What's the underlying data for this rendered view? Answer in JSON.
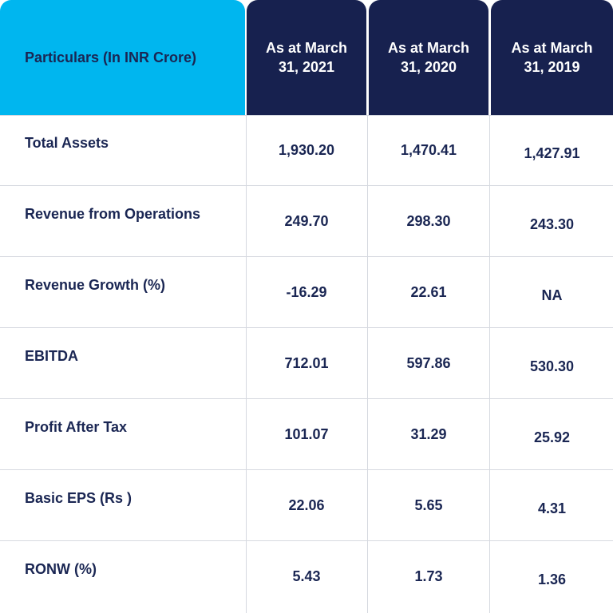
{
  "header": {
    "particulars": "Particulars (In INR Crore)",
    "col_2021": "As at March 31, 2021",
    "col_2020": "As at March 31, 2020",
    "col_2019": "As at March 31, 2019"
  },
  "rows": [
    {
      "label": "Total Assets",
      "v2021": "1,930.20",
      "v2020": "1,470.41",
      "v2019": "1,427.91"
    },
    {
      "label": "Revenue from Operations",
      "v2021": "249.70",
      "v2020": "298.30",
      "v2019": "243.30"
    },
    {
      "label": "Revenue Growth (%)",
      "v2021": "-16.29",
      "v2020": "22.61",
      "v2019": "NA"
    },
    {
      "label": "EBITDA",
      "v2021": "712.01",
      "v2020": "597.86",
      "v2019": "530.30"
    },
    {
      "label": "Profit After Tax",
      "v2021": "101.07",
      "v2020": "31.29",
      "v2019": "25.92"
    },
    {
      "label": "Basic EPS (Rs )",
      "v2021": "22.06",
      "v2020": "5.65",
      "v2019": "4.31"
    },
    {
      "label": "RONW (%)",
      "v2021": "5.43",
      "v2020": "1.73",
      "v2019": "1.36"
    }
  ],
  "colors": {
    "particulars_header_bg": "#00b6ef",
    "year_header_bg": "#17214f",
    "text": "#1a2653"
  }
}
